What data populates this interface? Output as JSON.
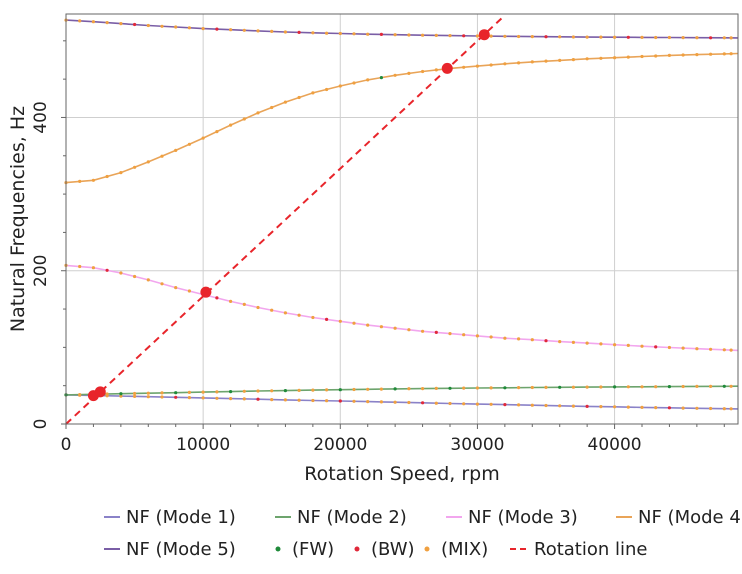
{
  "chart_data": {
    "type": "line",
    "xlabel": "Rotation Speed, rpm",
    "ylabel": "Natural Frequencies, Hz",
    "xlim": [
      0,
      49000
    ],
    "ylim": [
      0,
      535
    ],
    "xticks": [
      0,
      10000,
      20000,
      30000,
      40000
    ],
    "yticks": [
      0,
      200,
      400
    ],
    "grid": true,
    "legend_position": "bottom",
    "x": [
      0,
      2000,
      4000,
      6000,
      8000,
      10000,
      12000,
      14000,
      16000,
      18000,
      20000,
      22000,
      24000,
      26000,
      28000,
      30000,
      32000,
      34000,
      36000,
      38000,
      40000,
      42000,
      44000,
      46000,
      48000,
      49000
    ],
    "series": [
      {
        "name": "NF (Mode 1)",
        "color": "#8a82c8",
        "values": [
          38,
          37.2,
          36.4,
          35.6,
          34.8,
          34,
          33.2,
          32.3,
          31.5,
          30.7,
          30,
          29.2,
          28.4,
          27.6,
          26.8,
          26,
          25.3,
          24.5,
          23.8,
          23,
          22.4,
          21.7,
          21.1,
          20.5,
          20,
          19.7
        ]
      },
      {
        "name": "NF (Mode 2)",
        "color": "#6da46d",
        "values": [
          38,
          38.8,
          39.5,
          40.2,
          40.9,
          41.6,
          42.3,
          43,
          43.6,
          44.2,
          44.8,
          45.3,
          45.8,
          46.2,
          46.6,
          47,
          47.3,
          47.6,
          47.9,
          48.2,
          48.4,
          48.6,
          48.8,
          49,
          49.2,
          49.3
        ]
      },
      {
        "name": "NF (Mode 3)",
        "color": "#f2a6ee",
        "values": [
          207,
          204,
          197,
          188,
          178,
          169,
          160,
          152,
          145,
          139,
          134,
          129,
          125,
          121,
          118,
          115,
          112,
          110,
          107.5,
          105.5,
          103.5,
          101.5,
          99.8,
          98.2,
          96.8,
          96
        ]
      },
      {
        "name": "NF (Mode 4)",
        "color": "#e9a458",
        "values": [
          315,
          318,
          328,
          342,
          357,
          373,
          390,
          406,
          420,
          432,
          441,
          449,
          455,
          460,
          464,
          467,
          470,
          472.5,
          474.5,
          476.5,
          478,
          479.5,
          481,
          482,
          483,
          483.5
        ]
      },
      {
        "name": "NF (Mode 5)",
        "color": "#7a5ea6",
        "values": [
          527,
          525,
          522.5,
          520,
          518,
          516,
          514.5,
          513,
          511.5,
          510.5,
          509.5,
          508.7,
          508,
          507.3,
          506.8,
          506.3,
          505.9,
          505.5,
          505.2,
          504.9,
          504.7,
          504.5,
          504.3,
          504.1,
          503.9,
          503.8
        ]
      }
    ],
    "marker_series": [
      {
        "name": "(FW)",
        "color": "#1f8a3a"
      },
      {
        "name": "(BW)",
        "color": "#e0283a"
      },
      {
        "name": "(MIX)",
        "color": "#f0a040"
      }
    ],
    "rotation_line": {
      "name": "Rotation line",
      "color": "#e8252b",
      "x": [
        0,
        32000
      ],
      "y": [
        0,
        533.3
      ]
    },
    "intersection_points": [
      {
        "x": 2000,
        "y": 37
      },
      {
        "x": 2500,
        "y": 42
      },
      {
        "x": 10200,
        "y": 172
      },
      {
        "x": 27800,
        "y": 464
      },
      {
        "x": 30500,
        "y": 508
      }
    ],
    "legend": [
      "NF (Mode 1)",
      "NF (Mode 2)",
      "NF (Mode 3)",
      "NF (Mode 4)",
      "NF (Mode 5)",
      "(FW)",
      "(BW)",
      "(MIX)",
      "Rotation line"
    ]
  }
}
